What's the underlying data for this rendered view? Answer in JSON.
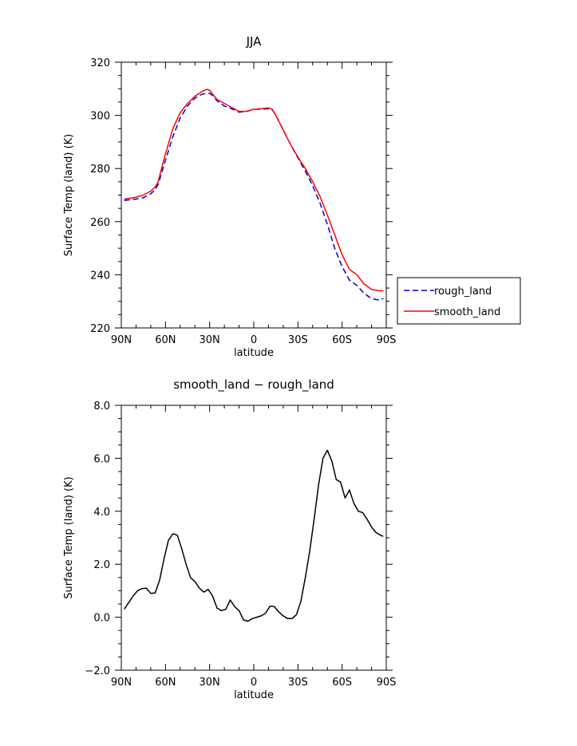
{
  "chart_data": [
    {
      "type": "line",
      "title": "JJA",
      "xlabel": "latitude",
      "ylabel": "Surface Temp (land) (K)",
      "xlim": [
        90,
        -90
      ],
      "ylim": [
        220,
        320
      ],
      "x_tick_values": [
        90,
        60,
        30,
        0,
        -30,
        -60,
        -90
      ],
      "x_tick_labels": [
        "90N",
        "60N",
        "30N",
        "0",
        "30S",
        "60S",
        "90S"
      ],
      "y_tick_values": [
        220,
        240,
        260,
        280,
        300,
        320
      ],
      "y_tick_labels": [
        "220",
        "240",
        "260",
        "280",
        "300",
        "320"
      ],
      "legend_position": "right",
      "series": [
        {
          "name": "rough_land",
          "color": "#0000cc",
          "dash": "dashed",
          "x": [
            88,
            80,
            75,
            70,
            67,
            65,
            60,
            55,
            50,
            45,
            40,
            35,
            32,
            30,
            28,
            25,
            20,
            15,
            10,
            5,
            0,
            -5,
            -10,
            -12,
            -15,
            -20,
            -25,
            -30,
            -35,
            -40,
            -45,
            -50,
            -55,
            -60,
            -65,
            -70,
            -75,
            -80,
            -85,
            -88
          ],
          "y": [
            268,
            268.5,
            269,
            270.5,
            272,
            274,
            283,
            292,
            299,
            303.5,
            306.5,
            308,
            308.3,
            308.3,
            307.5,
            305.5,
            303.5,
            302.5,
            301.2,
            301.5,
            302.3,
            302.3,
            302.5,
            302.7,
            300,
            294.5,
            289,
            284,
            279,
            273.5,
            267,
            259,
            250,
            243,
            238,
            236,
            233,
            231,
            230.5,
            231
          ]
        },
        {
          "name": "smooth_land",
          "color": "#ff0000",
          "dash": "solid",
          "x": [
            88,
            80,
            75,
            70,
            67,
            65,
            60,
            55,
            50,
            45,
            40,
            35,
            32,
            30,
            28,
            25,
            20,
            15,
            10,
            5,
            0,
            -5,
            -10,
            -12,
            -15,
            -20,
            -25,
            -30,
            -35,
            -40,
            -45,
            -50,
            -55,
            -60,
            -65,
            -70,
            -75,
            -80,
            -85,
            -88
          ],
          "y": [
            268.5,
            269.2,
            270,
            271.5,
            273,
            275,
            285.5,
            295,
            301,
            304.5,
            307.2,
            309,
            309.8,
            309.5,
            308,
            306,
            304.5,
            303,
            301.5,
            301.5,
            302.3,
            302.5,
            302.8,
            302.5,
            300,
            294.5,
            289,
            284.3,
            280,
            275,
            269.5,
            262.5,
            255,
            247.5,
            242,
            240,
            236.5,
            234.5,
            234,
            234
          ]
        }
      ]
    },
    {
      "type": "line",
      "title": "smooth_land − rough_land",
      "xlabel": "latitude",
      "ylabel": "Surface Temp (land) (K)",
      "xlim": [
        90,
        -90
      ],
      "ylim": [
        -2,
        8
      ],
      "x_tick_values": [
        90,
        60,
        30,
        0,
        -30,
        -60,
        -90
      ],
      "x_tick_labels": [
        "90N",
        "60N",
        "30N",
        "0",
        "30S",
        "60S",
        "90S"
      ],
      "y_tick_values": [
        -2,
        0,
        2,
        4,
        6,
        8
      ],
      "y_tick_labels": [
        "−2.0",
        "0.0",
        "2.0",
        "4.0",
        "6.0",
        "8.0"
      ],
      "series": [
        {
          "color": "#000000",
          "dash": "solid",
          "x": [
            88,
            85,
            82,
            79,
            76,
            73,
            70,
            67,
            64,
            61,
            58,
            55,
            52,
            49,
            46,
            43,
            40,
            37,
            34,
            31,
            28,
            25,
            22,
            19,
            16,
            13,
            10,
            7,
            4,
            1,
            -2,
            -5,
            -8,
            -11,
            -14,
            -17,
            -20,
            -23,
            -26,
            -29,
            -32,
            -35,
            -38,
            -41,
            -44,
            -47,
            -50,
            -53,
            -56,
            -59,
            -62,
            -65,
            -68,
            -71,
            -74,
            -77,
            -80,
            -83,
            -86,
            -88
          ],
          "y": [
            0.3,
            0.55,
            0.8,
            1.0,
            1.08,
            1.1,
            0.9,
            0.92,
            1.4,
            2.2,
            2.9,
            3.15,
            3.1,
            2.6,
            2.0,
            1.5,
            1.35,
            1.1,
            0.95,
            1.05,
            0.8,
            0.35,
            0.25,
            0.3,
            0.65,
            0.4,
            0.25,
            -0.1,
            -0.15,
            -0.05,
            0.0,
            0.05,
            0.15,
            0.42,
            0.4,
            0.2,
            0.05,
            -0.05,
            -0.05,
            0.1,
            0.6,
            1.5,
            2.5,
            3.7,
            5.0,
            6.0,
            6.3,
            5.9,
            5.2,
            5.1,
            4.5,
            4.8,
            4.3,
            4.0,
            3.95,
            3.7,
            3.4,
            3.2,
            3.1,
            3.05
          ]
        }
      ]
    }
  ]
}
